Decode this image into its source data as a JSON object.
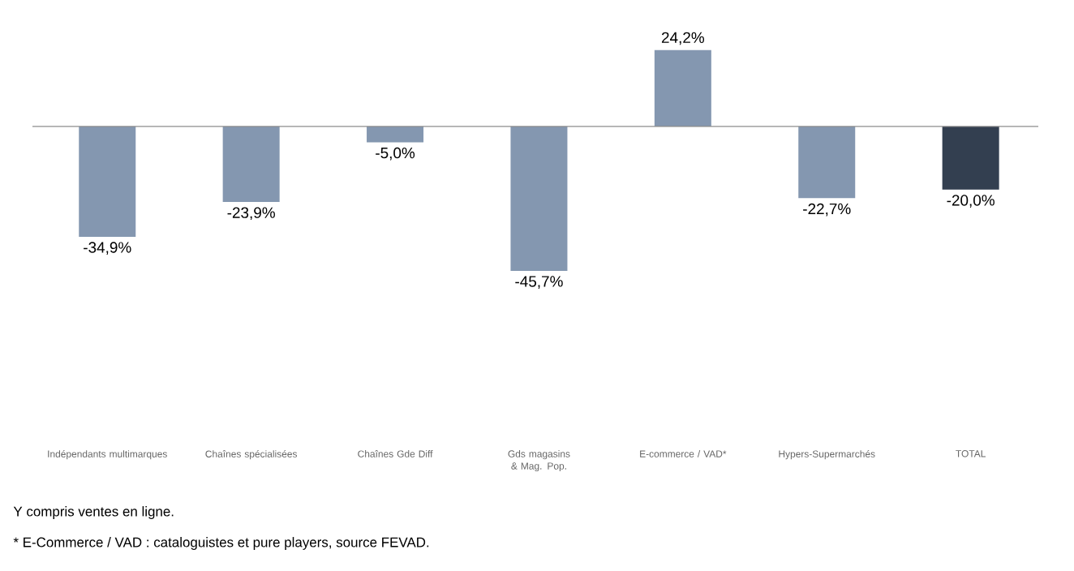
{
  "chart_data": {
    "type": "bar",
    "categories": [
      "Indépendants multimarques",
      "Chaînes spécialisées",
      "Chaînes Gde Diff",
      "Gds magasins & Mag. Pop.",
      "E-commerce / VAD*",
      "Hypers-Supermarchés",
      "TOTAL"
    ],
    "values": [
      -34.9,
      -23.9,
      -5.0,
      -45.7,
      24.2,
      -22.7,
      -20.0
    ],
    "colors": [
      "#8497b0",
      "#8497b0",
      "#8497b0",
      "#8497b0",
      "#8497b0",
      "#8497b0",
      "#333f50"
    ],
    "value_labels": [
      "-34,9%",
      "-23,9%",
      "-5,0%",
      "-45,7%",
      "24,2%",
      "-22,7%",
      "-20,0%"
    ],
    "annotations": [
      "Y compris ventes en ligne.",
      "* E-Commerce / VAD : cataloguistes et pure players, source FEVAD."
    ]
  }
}
